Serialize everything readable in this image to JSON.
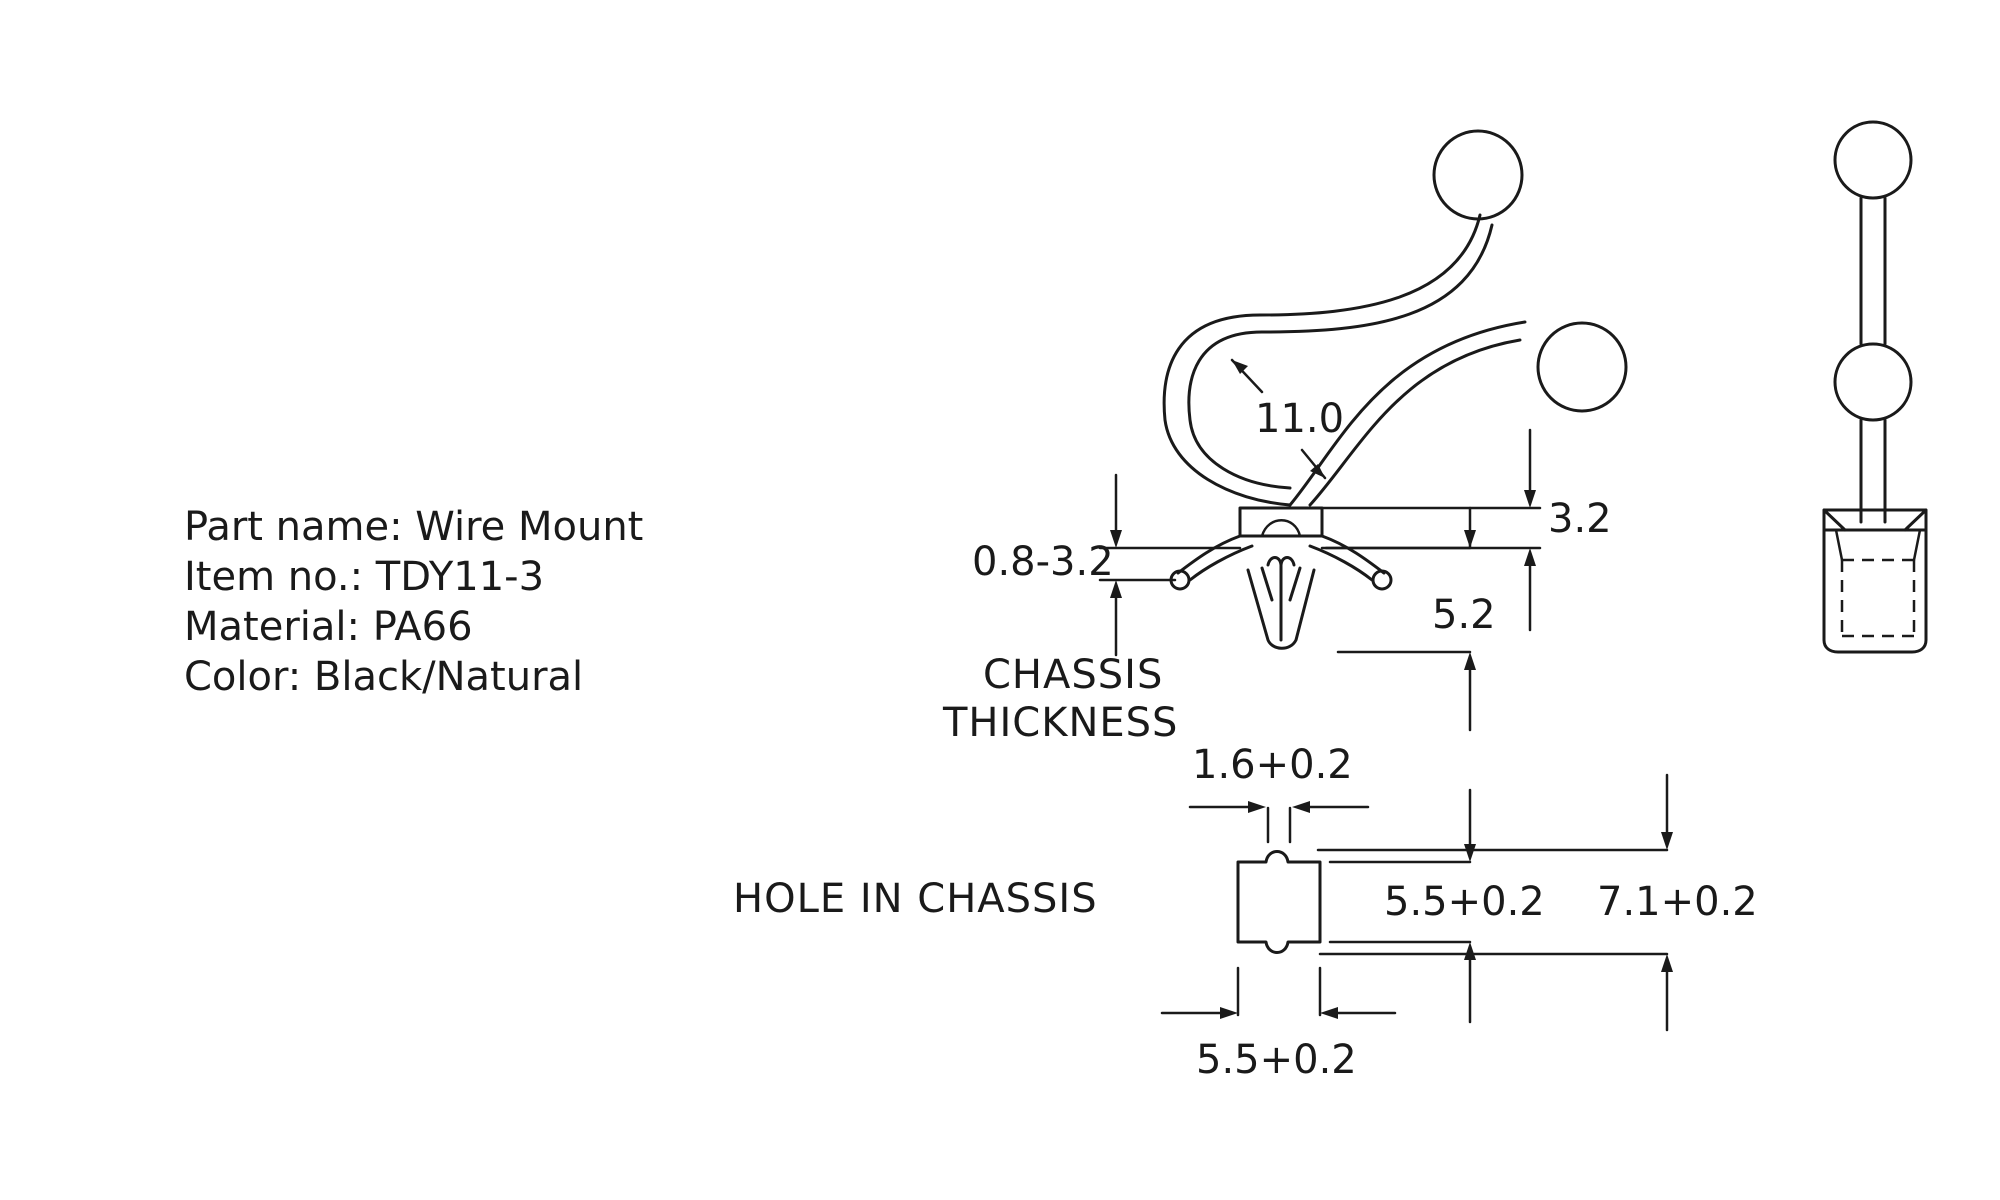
{
  "specs": {
    "part_name": "Part name: Wire Mount",
    "item_no": "Item no.: TDY11-3",
    "material": "Material: PA66",
    "color": "Color: Black/Natural"
  },
  "dimensions": {
    "loop_diameter": "11.0",
    "top_height": "3.2",
    "chassis_range": "0.8-3.2",
    "clip_height": "5.2",
    "hole_slot_width": "1.6+0.2",
    "hole_height": "5.5+0.2",
    "hole_overall_height": "7.1+0.2",
    "hole_width": "5.5+0.2"
  },
  "labels": {
    "chassis_thickness_line1": "CHASSIS",
    "chassis_thickness_line2": "THICKNESS",
    "hole_in_chassis": "HOLE IN CHASSIS"
  }
}
